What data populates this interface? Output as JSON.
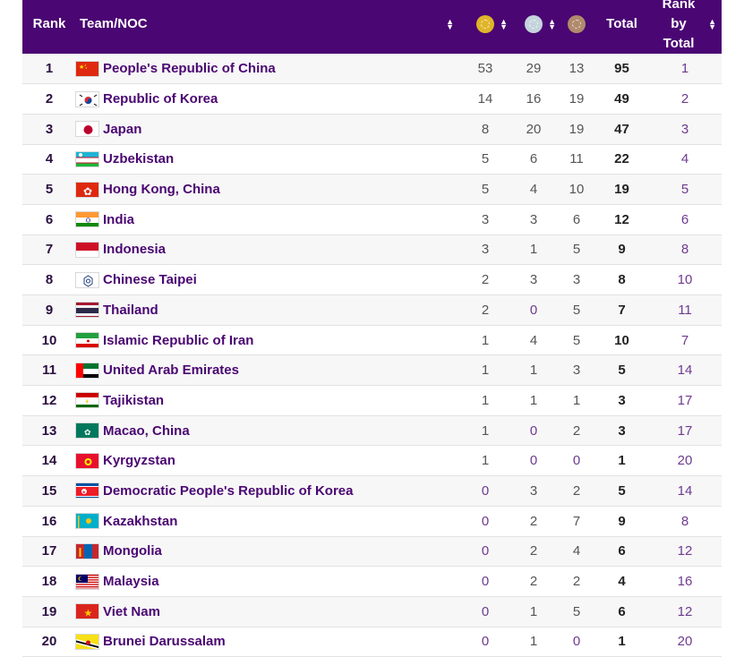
{
  "header": {
    "rank": "Rank",
    "team": "Team/NOC",
    "gold_icon": "gold-medal-icon",
    "silver_icon": "silver-medal-icon",
    "bronze_icon": "bronze-medal-icon",
    "total": "Total",
    "rank_by_total_line1": "Rank",
    "rank_by_total_line2": "by",
    "rank_by_total_line3": "Total"
  },
  "colors": {
    "header_bg": "#4a0672",
    "team_text": "#4a0672",
    "gold": "#e0b52a",
    "silver": "#c5d4dc",
    "bronze": "#b08a6c"
  },
  "rows": [
    {
      "rank": "1",
      "team": "People's Republic of China",
      "flag": "china-flag",
      "gold": "53",
      "silver": "29",
      "bronze": "13",
      "total": "95",
      "rank_by_total": "1"
    },
    {
      "rank": "2",
      "team": "Republic of Korea",
      "flag": "korea-flag",
      "gold": "14",
      "silver": "16",
      "bronze": "19",
      "total": "49",
      "rank_by_total": "2"
    },
    {
      "rank": "3",
      "team": "Japan",
      "flag": "japan-flag",
      "gold": "8",
      "silver": "20",
      "bronze": "19",
      "total": "47",
      "rank_by_total": "3"
    },
    {
      "rank": "4",
      "team": "Uzbekistan",
      "flag": "uzbekistan-flag",
      "gold": "5",
      "silver": "6",
      "bronze": "11",
      "total": "22",
      "rank_by_total": "4"
    },
    {
      "rank": "5",
      "team": "Hong Kong, China",
      "flag": "hong-kong-flag",
      "gold": "5",
      "silver": "4",
      "bronze": "10",
      "total": "19",
      "rank_by_total": "5"
    },
    {
      "rank": "6",
      "team": "India",
      "flag": "india-flag",
      "gold": "3",
      "silver": "3",
      "bronze": "6",
      "total": "12",
      "rank_by_total": "6"
    },
    {
      "rank": "7",
      "team": "Indonesia",
      "flag": "indonesia-flag",
      "gold": "3",
      "silver": "1",
      "bronze": "5",
      "total": "9",
      "rank_by_total": "8"
    },
    {
      "rank": "8",
      "team": "Chinese Taipei",
      "flag": "chinese-taipei-flag",
      "gold": "2",
      "silver": "3",
      "bronze": "3",
      "total": "8",
      "rank_by_total": "10"
    },
    {
      "rank": "9",
      "team": "Thailand",
      "flag": "thailand-flag",
      "gold": "2",
      "silver": "0",
      "bronze": "5",
      "total": "7",
      "rank_by_total": "11"
    },
    {
      "rank": "10",
      "team": "Islamic Republic of Iran",
      "flag": "iran-flag",
      "gold": "1",
      "silver": "4",
      "bronze": "5",
      "total": "10",
      "rank_by_total": "7"
    },
    {
      "rank": "11",
      "team": "United Arab Emirates",
      "flag": "uae-flag",
      "gold": "1",
      "silver": "1",
      "bronze": "3",
      "total": "5",
      "rank_by_total": "14"
    },
    {
      "rank": "12",
      "team": "Tajikistan",
      "flag": "tajikistan-flag",
      "gold": "1",
      "silver": "1",
      "bronze": "1",
      "total": "3",
      "rank_by_total": "17"
    },
    {
      "rank": "13",
      "team": "Macao, China",
      "flag": "macao-flag",
      "gold": "1",
      "silver": "0",
      "bronze": "2",
      "total": "3",
      "rank_by_total": "17"
    },
    {
      "rank": "14",
      "team": "Kyrgyzstan",
      "flag": "kyrgyzstan-flag",
      "gold": "1",
      "silver": "0",
      "bronze": "0",
      "total": "1",
      "rank_by_total": "20"
    },
    {
      "rank": "15",
      "team": "Democratic People's Republic of Korea",
      "flag": "dpr-korea-flag",
      "gold": "0",
      "silver": "3",
      "bronze": "2",
      "total": "5",
      "rank_by_total": "14"
    },
    {
      "rank": "16",
      "team": "Kazakhstan",
      "flag": "kazakhstan-flag",
      "gold": "0",
      "silver": "2",
      "bronze": "7",
      "total": "9",
      "rank_by_total": "8"
    },
    {
      "rank": "17",
      "team": "Mongolia",
      "flag": "mongolia-flag",
      "gold": "0",
      "silver": "2",
      "bronze": "4",
      "total": "6",
      "rank_by_total": "12"
    },
    {
      "rank": "18",
      "team": "Malaysia",
      "flag": "malaysia-flag",
      "gold": "0",
      "silver": "2",
      "bronze": "2",
      "total": "4",
      "rank_by_total": "16"
    },
    {
      "rank": "19",
      "team": "Viet Nam",
      "flag": "vietnam-flag",
      "gold": "0",
      "silver": "1",
      "bronze": "5",
      "total": "6",
      "rank_by_total": "12"
    },
    {
      "rank": "20",
      "team": "Brunei Darussalam",
      "flag": "brunei-flag",
      "gold": "0",
      "silver": "1",
      "bronze": "0",
      "total": "1",
      "rank_by_total": "20"
    }
  ]
}
